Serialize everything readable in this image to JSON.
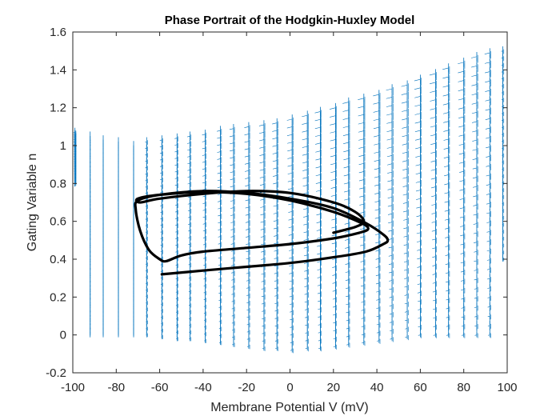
{
  "chart_data": {
    "type": "line",
    "title": "Phase Portrait of the Hodgkin-Huxley Model",
    "xlabel": "Membrane Potential V (mV)",
    "ylabel": "Gating Variable n",
    "xlim": [
      -100,
      100
    ],
    "ylim": [
      -0.2,
      1.6
    ],
    "xticks": [
      "-100",
      "-80",
      "-60",
      "-40",
      "-20",
      "0",
      "20",
      "40",
      "60",
      "80",
      "100"
    ],
    "yticks": [
      "-0.2",
      "0",
      "0.2",
      "0.4",
      "0.6",
      "0.8",
      "1",
      "1.2",
      "1.4",
      "1.6"
    ],
    "grid": false,
    "legend": "none",
    "colors": {
      "quiver": "#0072BD",
      "trajectory": "#000000",
      "axes": "#262626"
    },
    "series": [
      {
        "kind": "trajectory",
        "points": [
          [
            -59,
            0.32
          ],
          [
            -40,
            0.34
          ],
          [
            -20,
            0.36
          ],
          [
            0,
            0.38
          ],
          [
            20,
            0.41
          ],
          [
            35,
            0.44
          ],
          [
            43,
            0.48
          ],
          [
            45,
            0.5
          ],
          [
            43,
            0.53
          ],
          [
            35,
            0.59
          ],
          [
            20,
            0.67
          ],
          [
            0,
            0.72
          ],
          [
            -20,
            0.75
          ],
          [
            -40,
            0.76
          ],
          [
            -60,
            0.74
          ],
          [
            -70,
            0.71
          ],
          [
            -71,
            0.66
          ],
          [
            -69,
            0.55
          ],
          [
            -65,
            0.45
          ],
          [
            -60,
            0.4
          ],
          [
            -57,
            0.39
          ],
          [
            -50,
            0.42
          ],
          [
            -40,
            0.44
          ],
          [
            -20,
            0.46
          ],
          [
            0,
            0.48
          ],
          [
            20,
            0.51
          ],
          [
            32,
            0.54
          ],
          [
            36,
            0.56
          ],
          [
            33,
            0.59
          ],
          [
            20,
            0.65
          ],
          [
            0,
            0.71
          ],
          [
            -20,
            0.745
          ],
          [
            -40,
            0.755
          ],
          [
            -60,
            0.74
          ],
          [
            -70,
            0.72
          ],
          [
            -69,
            0.7
          ],
          [
            -60,
            0.72
          ],
          [
            -40,
            0.745
          ],
          [
            -20,
            0.76
          ],
          [
            0,
            0.75
          ],
          [
            20,
            0.7
          ],
          [
            30,
            0.65
          ],
          [
            34,
            0.6
          ],
          [
            30,
            0.57
          ],
          [
            20,
            0.54
          ]
        ]
      },
      {
        "kind": "quiver",
        "columns": [
          {
            "v": -99,
            "n_min": 0.8,
            "n_max": 1.07,
            "spread": 2.0
          },
          {
            "v": -92,
            "n_min": 0.0,
            "n_max": 1.05,
            "spread": 1.5
          },
          {
            "v": -86,
            "n_min": 0.0,
            "n_max": 1.03,
            "spread": 1.5
          },
          {
            "v": -79,
            "n_min": 0.0,
            "n_max": 1.02,
            "spread": 1.5
          },
          {
            "v": -72,
            "n_min": 0.0,
            "n_max": 1.0,
            "spread": 1.5
          },
          {
            "v": -66,
            "n_min": 0.0,
            "n_max": 1.02,
            "spread": 2.0
          },
          {
            "v": -59,
            "n_min": -0.01,
            "n_max": 1.03,
            "spread": 2.5
          },
          {
            "v": -52,
            "n_min": -0.02,
            "n_max": 1.04,
            "spread": 3.0
          },
          {
            "v": -46,
            "n_min": -0.02,
            "n_max": 1.05,
            "spread": 3.5
          },
          {
            "v": -39,
            "n_min": -0.03,
            "n_max": 1.06,
            "spread": 4.0
          },
          {
            "v": -32,
            "n_min": -0.04,
            "n_max": 1.08,
            "spread": 4.5
          },
          {
            "v": -26,
            "n_min": -0.05,
            "n_max": 1.09,
            "spread": 5.0
          },
          {
            "v": -19,
            "n_min": -0.06,
            "n_max": 1.1,
            "spread": 5.5
          },
          {
            "v": -12,
            "n_min": -0.07,
            "n_max": 1.11,
            "spread": 6.0
          },
          {
            "v": -6,
            "n_min": -0.07,
            "n_max": 1.12,
            "spread": 6.0
          },
          {
            "v": 1,
            "n_min": -0.08,
            "n_max": 1.14,
            "spread": 6.5
          },
          {
            "v": 8,
            "n_min": -0.07,
            "n_max": 1.16,
            "spread": 7.0
          },
          {
            "v": 14,
            "n_min": -0.07,
            "n_max": 1.18,
            "spread": 7.0
          },
          {
            "v": 21,
            "n_min": -0.06,
            "n_max": 1.2,
            "spread": 7.5
          },
          {
            "v": 27,
            "n_min": -0.05,
            "n_max": 1.23,
            "spread": 7.5
          },
          {
            "v": 34,
            "n_min": -0.04,
            "n_max": 1.25,
            "spread": 7.5
          },
          {
            "v": 41,
            "n_min": -0.03,
            "n_max": 1.27,
            "spread": 7.5
          },
          {
            "v": 47,
            "n_min": -0.02,
            "n_max": 1.3,
            "spread": 7.5
          },
          {
            "v": 54,
            "n_min": -0.01,
            "n_max": 1.32,
            "spread": 7.5
          },
          {
            "v": 60,
            "n_min": 0.0,
            "n_max": 1.35,
            "spread": 7.5
          },
          {
            "v": 67,
            "n_min": 0.0,
            "n_max": 1.38,
            "spread": 7.5
          },
          {
            "v": 73,
            "n_min": 0.0,
            "n_max": 1.41,
            "spread": 7.5
          },
          {
            "v": 80,
            "n_min": 0.0,
            "n_max": 1.44,
            "spread": 7.5
          },
          {
            "v": 86,
            "n_min": 0.0,
            "n_max": 1.47,
            "spread": 7.0
          },
          {
            "v": 92,
            "n_min": 0.0,
            "n_max": 1.49,
            "spread": 6.5
          },
          {
            "v": 98,
            "n_min": 0.4,
            "n_max": 1.5,
            "spread": 2.0
          }
        ]
      }
    ]
  }
}
